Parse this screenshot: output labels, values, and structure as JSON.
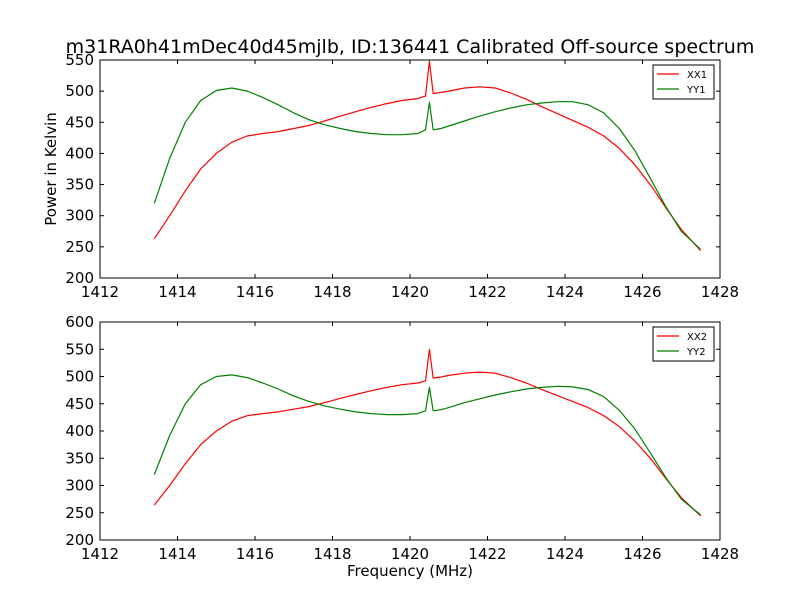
{
  "figure": {
    "title": "m31RA0h41mDec40d45mjlb, ID:136441 Calibrated Off-source spectrum"
  },
  "chart_data": [
    {
      "type": "line",
      "xlabel": "",
      "ylabel": "Power in Kelvin",
      "xlim": [
        1412,
        1428
      ],
      "ylim": [
        200,
        550
      ],
      "xticks": [
        1412,
        1414,
        1416,
        1418,
        1420,
        1422,
        1424,
        1426,
        1428
      ],
      "yticks": [
        200,
        250,
        300,
        350,
        400,
        450,
        500,
        550
      ],
      "legend_position": "top-right",
      "series": [
        {
          "name": "XX1",
          "color": "#ff0000",
          "x": [
            1413.4,
            1413.8,
            1414.2,
            1414.6,
            1415.0,
            1415.4,
            1415.8,
            1416.2,
            1416.6,
            1417.0,
            1417.4,
            1417.8,
            1418.2,
            1418.6,
            1419.0,
            1419.4,
            1419.8,
            1420.2,
            1420.4,
            1420.5,
            1420.6,
            1420.8,
            1421.0,
            1421.4,
            1421.8,
            1422.2,
            1422.6,
            1423.0,
            1423.4,
            1423.8,
            1424.2,
            1424.6,
            1425.0,
            1425.4,
            1425.8,
            1426.2,
            1426.6,
            1427.0,
            1427.5
          ],
          "y": [
            263,
            300,
            340,
            375,
            400,
            418,
            428,
            432,
            435,
            440,
            445,
            452,
            460,
            467,
            474,
            480,
            485,
            488,
            492,
            548,
            496,
            498,
            500,
            505,
            507,
            505,
            497,
            487,
            475,
            464,
            453,
            442,
            428,
            408,
            382,
            350,
            313,
            278,
            244
          ]
        },
        {
          "name": "YY1",
          "color": "#008000",
          "x": [
            1413.4,
            1413.8,
            1414.2,
            1414.6,
            1415.0,
            1415.4,
            1415.8,
            1416.2,
            1416.6,
            1417.0,
            1417.4,
            1417.8,
            1418.2,
            1418.6,
            1419.0,
            1419.4,
            1419.8,
            1420.2,
            1420.4,
            1420.5,
            1420.6,
            1420.8,
            1421.0,
            1421.4,
            1421.8,
            1422.2,
            1422.6,
            1423.0,
            1423.4,
            1423.8,
            1424.2,
            1424.6,
            1425.0,
            1425.4,
            1425.8,
            1426.2,
            1426.6,
            1427.0,
            1427.5
          ],
          "y": [
            320,
            392,
            450,
            485,
            501,
            505,
            500,
            490,
            478,
            465,
            454,
            446,
            440,
            435,
            432,
            430,
            430,
            432,
            438,
            482,
            438,
            440,
            444,
            452,
            460,
            467,
            473,
            478,
            481,
            483,
            483,
            478,
            465,
            440,
            405,
            360,
            315,
            275,
            246
          ]
        }
      ]
    },
    {
      "type": "line",
      "xlabel": "Frequency (MHz)",
      "ylabel": "",
      "xlim": [
        1412,
        1428
      ],
      "ylim": [
        200,
        600
      ],
      "xticks": [
        1412,
        1414,
        1416,
        1418,
        1420,
        1422,
        1424,
        1426,
        1428
      ],
      "yticks": [
        200,
        250,
        300,
        350,
        400,
        450,
        500,
        550,
        600
      ],
      "legend_position": "top-right",
      "series": [
        {
          "name": "XX2",
          "color": "#ff0000",
          "x": [
            1413.4,
            1413.8,
            1414.2,
            1414.6,
            1415.0,
            1415.4,
            1415.8,
            1416.2,
            1416.6,
            1417.0,
            1417.4,
            1417.8,
            1418.2,
            1418.6,
            1419.0,
            1419.4,
            1419.8,
            1420.2,
            1420.4,
            1420.5,
            1420.6,
            1420.8,
            1421.0,
            1421.4,
            1421.8,
            1422.2,
            1422.6,
            1423.0,
            1423.4,
            1423.8,
            1424.2,
            1424.6,
            1425.0,
            1425.4,
            1425.8,
            1426.2,
            1426.6,
            1427.0,
            1427.5
          ],
          "y": [
            264,
            300,
            340,
            375,
            400,
            418,
            428,
            432,
            435,
            440,
            445,
            452,
            460,
            467,
            474,
            480,
            485,
            488,
            492,
            550,
            497,
            499,
            502,
            506,
            508,
            506,
            498,
            488,
            476,
            465,
            454,
            443,
            428,
            408,
            382,
            350,
            313,
            278,
            244
          ]
        },
        {
          "name": "YY2",
          "color": "#008000",
          "x": [
            1413.4,
            1413.8,
            1414.2,
            1414.6,
            1415.0,
            1415.4,
            1415.8,
            1416.2,
            1416.6,
            1417.0,
            1417.4,
            1417.8,
            1418.2,
            1418.6,
            1419.0,
            1419.4,
            1419.8,
            1420.2,
            1420.4,
            1420.5,
            1420.6,
            1420.8,
            1421.0,
            1421.4,
            1421.8,
            1422.2,
            1422.6,
            1423.0,
            1423.4,
            1423.8,
            1424.2,
            1424.6,
            1425.0,
            1425.4,
            1425.8,
            1426.2,
            1426.6,
            1427.0,
            1427.5
          ],
          "y": [
            320,
            392,
            450,
            485,
            500,
            503,
            498,
            488,
            477,
            464,
            454,
            446,
            440,
            435,
            432,
            430,
            430,
            432,
            437,
            480,
            437,
            439,
            443,
            452,
            459,
            466,
            472,
            477,
            480,
            482,
            481,
            476,
            463,
            438,
            404,
            360,
            315,
            275,
            246
          ]
        }
      ]
    }
  ]
}
